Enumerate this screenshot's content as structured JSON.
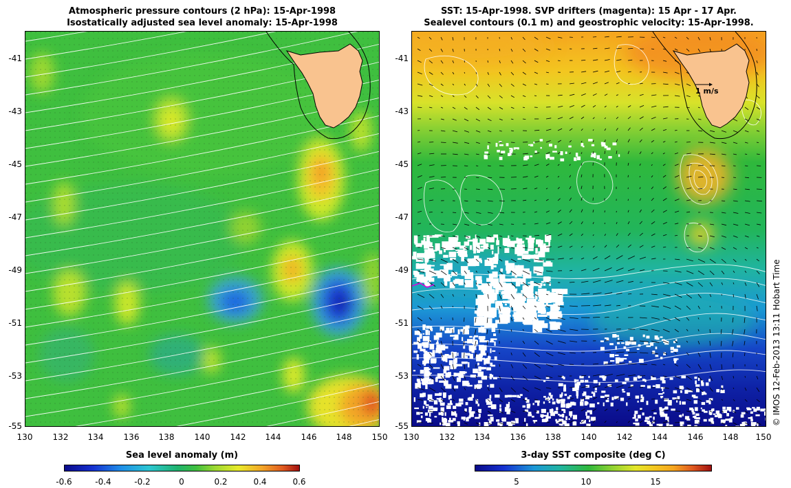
{
  "left_panel": {
    "title_line1": "Atmospheric pressure contours (2 hPa): 15-Apr-1998",
    "title_line2": "Isostatically adjusted sea level anomaly: 15-Apr-1998",
    "colorbar_title": "Sea level anomaly (m)",
    "colorbar_ticks": [
      "-0.6",
      "-0.4",
      "-0.2",
      "0",
      "0.2",
      "0.4",
      "0.6"
    ],
    "colorbar_range": [
      -0.6,
      0.6
    ]
  },
  "right_panel": {
    "title_line1": "SST: 15-Apr-1998. SVP drifters (magenta): 15 Apr - 17 Apr.",
    "title_line2": "Sealevel contours (0.1 m) and geostrophic velocity: 15-Apr-1998.",
    "colorbar_title": "3-day SST composite (deg C)",
    "colorbar_ticks": [
      "5",
      "10",
      "15"
    ],
    "colorbar_range": [
      2,
      19
    ],
    "scale_arrow_label": "1 m/s"
  },
  "axes": {
    "lat_ticks": [
      "-41",
      "-43",
      "-45",
      "-47",
      "-49",
      "-51",
      "-53",
      "-55"
    ],
    "lon_ticks": [
      "130",
      "132",
      "134",
      "136",
      "138",
      "140",
      "142",
      "144",
      "146",
      "148",
      "150"
    ],
    "lat_range": [
      -55,
      -40
    ],
    "lon_range": [
      130,
      150
    ]
  },
  "credit": "© IMOS 12-Feb-2013 13:11 Hobart Time",
  "colors": {
    "land": "#f9c38f",
    "missing_data": "#ffffff",
    "contour": "#ffffff",
    "drifter": "#e000e0"
  }
}
